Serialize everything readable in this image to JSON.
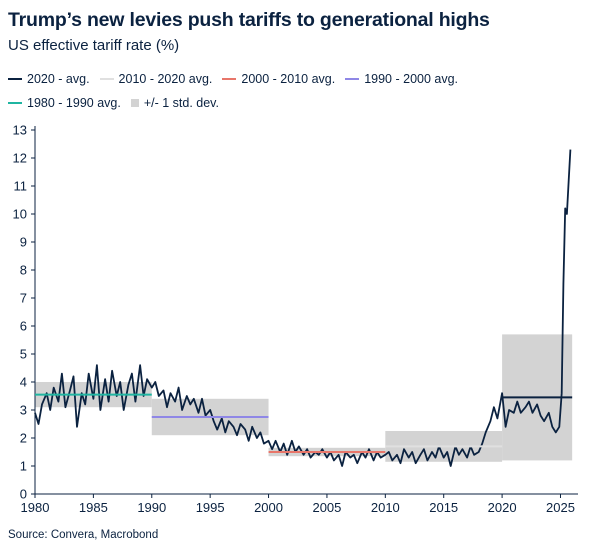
{
  "title": "Trump’s new levies push tariffs to generational highs",
  "subtitle": "US effective tariff rate (%)",
  "source": "Source: Convera, Macrobond",
  "legend": [
    {
      "label": "2020 - avg.",
      "color": "#0b2240",
      "kind": "line"
    },
    {
      "label": "2010 - 2020 avg.",
      "color": "#e0e0e0",
      "kind": "line"
    },
    {
      "label": "2000 - 2010 avg.",
      "color": "#e8766a",
      "kind": "line"
    },
    {
      "label": "1990 - 2000 avg.",
      "color": "#8f87e6",
      "kind": "line"
    },
    {
      "label": "1980 - 1990 avg.",
      "color": "#1fb5a1",
      "kind": "line"
    },
    {
      "label": "+/- 1 std. dev.",
      "color": "#d3d3d3",
      "kind": "box"
    }
  ],
  "chart_data": {
    "type": "line",
    "x_axis": {
      "min": 1980,
      "max": 2026.5,
      "ticks": [
        1980,
        1985,
        1990,
        1995,
        2000,
        2005,
        2010,
        2015,
        2020,
        2025
      ]
    },
    "y_axis": {
      "min": 0,
      "max": 13,
      "ticks": [
        0,
        1,
        2,
        3,
        4,
        5,
        6,
        7,
        8,
        9,
        10,
        11,
        12,
        13
      ]
    },
    "series": [
      {
        "color": "#0b2240",
        "points": [
          [
            1980.0,
            2.9
          ],
          [
            1980.3,
            2.5
          ],
          [
            1980.6,
            3.2
          ],
          [
            1981.0,
            3.6
          ],
          [
            1981.3,
            3.0
          ],
          [
            1981.6,
            3.8
          ],
          [
            1982.0,
            3.3
          ],
          [
            1982.3,
            4.3
          ],
          [
            1982.6,
            3.1
          ],
          [
            1983.0,
            3.7
          ],
          [
            1983.3,
            4.2
          ],
          [
            1983.6,
            2.4
          ],
          [
            1984.0,
            3.6
          ],
          [
            1984.3,
            3.2
          ],
          [
            1984.6,
            4.3
          ],
          [
            1985.0,
            3.4
          ],
          [
            1985.3,
            4.6
          ],
          [
            1985.6,
            3.0
          ],
          [
            1986.0,
            4.1
          ],
          [
            1986.3,
            3.3
          ],
          [
            1986.6,
            4.4
          ],
          [
            1987.0,
            3.5
          ],
          [
            1987.3,
            4.0
          ],
          [
            1987.6,
            3.0
          ],
          [
            1988.0,
            3.9
          ],
          [
            1988.3,
            4.3
          ],
          [
            1988.6,
            3.3
          ],
          [
            1989.0,
            4.6
          ],
          [
            1989.3,
            3.5
          ],
          [
            1989.6,
            4.1
          ],
          [
            1990.0,
            3.8
          ],
          [
            1990.3,
            4.0
          ],
          [
            1990.6,
            3.5
          ],
          [
            1991.0,
            3.7
          ],
          [
            1991.3,
            3.1
          ],
          [
            1991.6,
            3.6
          ],
          [
            1992.0,
            3.3
          ],
          [
            1992.3,
            3.8
          ],
          [
            1992.6,
            3.0
          ],
          [
            1993.0,
            3.5
          ],
          [
            1993.3,
            3.2
          ],
          [
            1993.6,
            3.4
          ],
          [
            1994.0,
            2.9
          ],
          [
            1994.3,
            3.4
          ],
          [
            1994.6,
            2.8
          ],
          [
            1995.0,
            3.0
          ],
          [
            1995.3,
            2.6
          ],
          [
            1995.6,
            2.3
          ],
          [
            1996.0,
            2.7
          ],
          [
            1996.3,
            2.2
          ],
          [
            1996.6,
            2.6
          ],
          [
            1997.0,
            2.4
          ],
          [
            1997.3,
            2.1
          ],
          [
            1997.6,
            2.5
          ],
          [
            1998.0,
            2.3
          ],
          [
            1998.3,
            1.9
          ],
          [
            1998.6,
            2.4
          ],
          [
            1999.0,
            2.0
          ],
          [
            1999.3,
            2.2
          ],
          [
            1999.6,
            1.8
          ],
          [
            2000.0,
            1.9
          ],
          [
            2000.3,
            1.6
          ],
          [
            2000.6,
            1.9
          ],
          [
            2001.0,
            1.5
          ],
          [
            2001.3,
            1.8
          ],
          [
            2001.6,
            1.4
          ],
          [
            2002.0,
            1.9
          ],
          [
            2002.3,
            1.5
          ],
          [
            2002.6,
            1.7
          ],
          [
            2003.0,
            1.4
          ],
          [
            2003.3,
            1.6
          ],
          [
            2003.6,
            1.3
          ],
          [
            2004.0,
            1.5
          ],
          [
            2004.3,
            1.4
          ],
          [
            2004.6,
            1.6
          ],
          [
            2005.0,
            1.3
          ],
          [
            2005.3,
            1.5
          ],
          [
            2005.6,
            1.2
          ],
          [
            2006.0,
            1.4
          ],
          [
            2006.3,
            1.0
          ],
          [
            2006.6,
            1.5
          ],
          [
            2007.0,
            1.3
          ],
          [
            2007.3,
            1.4
          ],
          [
            2007.6,
            1.1
          ],
          [
            2008.0,
            1.5
          ],
          [
            2008.3,
            1.3
          ],
          [
            2008.6,
            1.6
          ],
          [
            2009.0,
            1.2
          ],
          [
            2009.3,
            1.5
          ],
          [
            2009.6,
            1.3
          ],
          [
            2010.0,
            1.4
          ],
          [
            2010.3,
            1.5
          ],
          [
            2010.6,
            1.2
          ],
          [
            2011.0,
            1.4
          ],
          [
            2011.3,
            1.1
          ],
          [
            2011.6,
            1.6
          ],
          [
            2012.0,
            1.3
          ],
          [
            2012.3,
            1.5
          ],
          [
            2012.6,
            1.1
          ],
          [
            2013.0,
            1.4
          ],
          [
            2013.3,
            1.6
          ],
          [
            2013.6,
            1.2
          ],
          [
            2014.0,
            1.5
          ],
          [
            2014.3,
            1.3
          ],
          [
            2014.6,
            1.7
          ],
          [
            2015.0,
            1.3
          ],
          [
            2015.3,
            1.5
          ],
          [
            2015.6,
            1.0
          ],
          [
            2016.0,
            1.7
          ],
          [
            2016.3,
            1.4
          ],
          [
            2016.6,
            1.6
          ],
          [
            2017.0,
            1.3
          ],
          [
            2017.3,
            1.7
          ],
          [
            2017.6,
            1.4
          ],
          [
            2018.0,
            1.5
          ],
          [
            2018.3,
            1.8
          ],
          [
            2018.6,
            2.2
          ],
          [
            2019.0,
            2.6
          ],
          [
            2019.3,
            3.1
          ],
          [
            2019.6,
            2.7
          ],
          [
            2020.0,
            3.6
          ],
          [
            2020.3,
            2.4
          ],
          [
            2020.6,
            3.0
          ],
          [
            2021.0,
            2.9
          ],
          [
            2021.3,
            3.3
          ],
          [
            2021.6,
            2.9
          ],
          [
            2022.0,
            3.1
          ],
          [
            2022.3,
            3.3
          ],
          [
            2022.6,
            2.9
          ],
          [
            2023.0,
            3.2
          ],
          [
            2023.3,
            2.8
          ],
          [
            2023.6,
            2.6
          ],
          [
            2024.0,
            2.9
          ],
          [
            2024.3,
            2.4
          ],
          [
            2024.6,
            2.2
          ],
          [
            2024.9,
            2.4
          ],
          [
            2025.1,
            3.6
          ],
          [
            2025.25,
            7.5
          ],
          [
            2025.4,
            10.2
          ],
          [
            2025.55,
            10.0
          ],
          [
            2025.7,
            11.2
          ],
          [
            2025.85,
            12.3
          ]
        ]
      }
    ],
    "averages": [
      {
        "label": "1980 - 1990 avg.",
        "x_from": 1980,
        "x_to": 1990,
        "value": 3.55,
        "sd": 0.45,
        "color": "#1fb5a1"
      },
      {
        "label": "1990 - 2000 avg.",
        "x_from": 1990,
        "x_to": 2000,
        "value": 2.75,
        "sd": 0.65,
        "color": "#8f87e6"
      },
      {
        "label": "2000 - 2010 avg.",
        "x_from": 2000,
        "x_to": 2010,
        "value": 1.5,
        "sd": 0.15,
        "color": "#e8766a"
      },
      {
        "label": "2010 - 2020 avg.",
        "x_from": 2010,
        "x_to": 2020,
        "value": 1.7,
        "sd": 0.55,
        "color": "#e0e0e0"
      },
      {
        "label": "2020 - avg.",
        "x_from": 2020,
        "x_to": 2026,
        "value": 3.45,
        "sd": 2.25,
        "color": "#0b2240"
      }
    ],
    "grid": false,
    "legend_position": "top"
  }
}
